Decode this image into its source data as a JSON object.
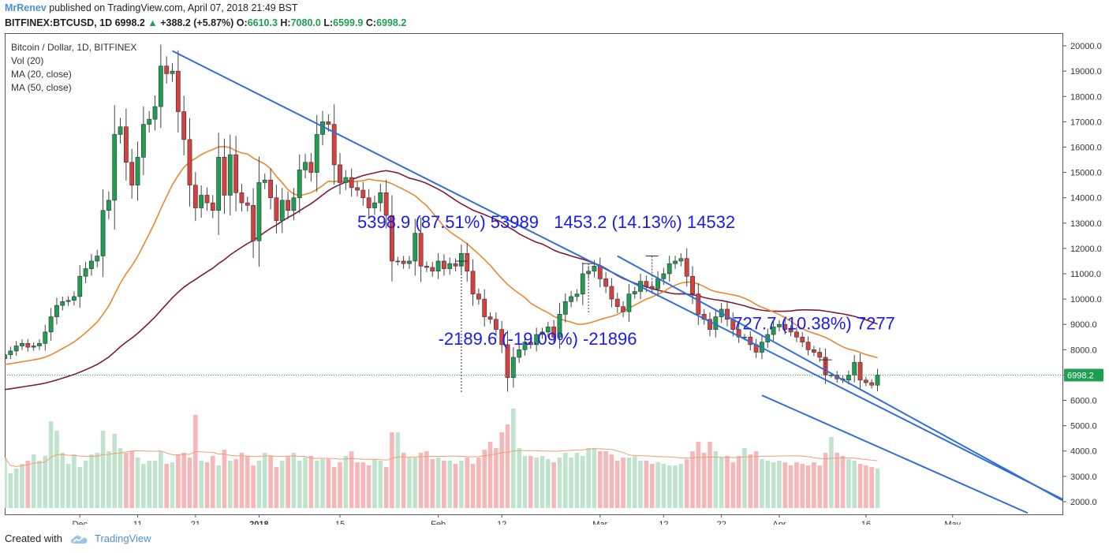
{
  "header": {
    "author": "MrRenev",
    "published": "published on TradingView.com, April 07, 2018 21:49 BST",
    "symbol": "BITFINEX:BTCUSD, 1D",
    "last": "6998.2",
    "change": "+388.2 (+5.87%)",
    "o_label": "O:",
    "o": "6610.3",
    "h_label": "H:",
    "h": "7080.0",
    "l_label": "L:",
    "l": "6599.9",
    "c_label": "C:",
    "c": "6998.2"
  },
  "legend": [
    "Bitcoin / Dollar, 1D, BITFINEX",
    "Vol (20)",
    "MA (20, close)",
    "MA (50, close)"
  ],
  "footer": {
    "created_with": "Created with",
    "brand": "TradingView"
  },
  "colors": {
    "up": "#1e9e51",
    "down": "#d84040",
    "ma20": "#e8892f",
    "ma50": "#7a1c3a",
    "trend": "#2f6fd6",
    "annot": "#1a1aee"
  },
  "chart_data": {
    "type": "candlestick",
    "yaxis": {
      "min": 1500,
      "max": 20500,
      "ticks": [
        2000,
        3000,
        4000,
        5000,
        6000,
        7000,
        8000,
        9000,
        10000,
        11000,
        12000,
        13000,
        14000,
        15000,
        16000,
        17000,
        18000,
        19000,
        20000
      ],
      "tick_labels": [
        "2000.0",
        "3000.0",
        "4000.0",
        "5000.0",
        "6000.0",
        "7000.0",
        "8000.0",
        "9000.0",
        "10000.0",
        "11000.0",
        "12000.0",
        "13000.0",
        "14000.0",
        "15000.0",
        "16000.0",
        "17000.0",
        "18000.0",
        "19000.0",
        "20000.0"
      ]
    },
    "xaxis": {
      "start": "2017-11-18",
      "end": "2018-05-20",
      "labels": [
        {
          "date": "2017-12-01",
          "text": "Dec"
        },
        {
          "date": "2017-12-11",
          "text": "11"
        },
        {
          "date": "2017-12-21",
          "text": "21"
        },
        {
          "date": "2018-01-01",
          "text": "2018"
        },
        {
          "date": "2018-01-15",
          "text": "15"
        },
        {
          "date": "2018-02-01",
          "text": "Feb"
        },
        {
          "date": "2018-02-12",
          "text": "12"
        },
        {
          "date": "2018-03-01",
          "text": "Mar"
        },
        {
          "date": "2018-03-12",
          "text": "12"
        },
        {
          "date": "2018-03-22",
          "text": "22"
        },
        {
          "date": "2018-04-01",
          "text": "Apr"
        },
        {
          "date": "2018-04-16",
          "text": "16"
        },
        {
          "date": "2018-05-01",
          "text": "May"
        }
      ]
    },
    "last_price": {
      "value": 6998.2,
      "label": "6998.2"
    },
    "candles_start": "2017-11-18",
    "closes": [
      7800,
      7950,
      8150,
      8250,
      8100,
      8150,
      8250,
      8700,
      9300,
      9750,
      9900,
      9950,
      10100,
      10900,
      11200,
      11500,
      11700,
      13500,
      13900,
      16500,
      16800,
      15400,
      14500,
      15600,
      16900,
      17100,
      17600,
      19200,
      18900,
      19000,
      17400,
      16300,
      14500,
      13600,
      14100,
      13800,
      13500,
      15600,
      14100,
      15700,
      14200,
      13800,
      13700,
      12300,
      14600,
      14700,
      14000,
      13100,
      13900,
      13500,
      14000,
      15100,
      15400,
      15000,
      16500,
      17000,
      16900,
      15300,
      14600,
      14800,
      14400,
      14300,
      14000,
      13600,
      13800,
      14200,
      13300,
      11500,
      11500,
      11400,
      11500,
      12600,
      11300,
      11250,
      11100,
      11500,
      11200,
      11400,
      11300,
      11800,
      11100,
      10200,
      10000,
      9300,
      9200,
      8800,
      8200,
      6900,
      7700,
      8000,
      8300,
      8200,
      8600,
      8700,
      8900,
      8500,
      9400,
      9900,
      10100,
      10200,
      11000,
      11100,
      11300,
      10800,
      10500,
      10000,
      9700,
      9500,
      10200,
      10300,
      10700,
      10500,
      10400,
      10800,
      11000,
      11400,
      11500,
      11600,
      10900,
      10200,
      9400,
      9200,
      8800,
      9300,
      9600,
      9200,
      8800,
      8500,
      8500,
      8200,
      7900,
      8300,
      8600,
      8900,
      9000,
      8800,
      8700,
      8500,
      8300,
      8000,
      7900,
      7700,
      7000,
      7000,
      6850,
      6800,
      7000,
      7500,
      6800,
      6700,
      6600,
      7000
    ],
    "volumes": [
      3200,
      2200,
      2500,
      2800,
      3000,
      3400,
      3000,
      3300,
      5500,
      4900,
      3500,
      2800,
      3400,
      2600,
      3000,
      3400,
      3500,
      4900,
      3600,
      4700,
      3800,
      3500,
      3600,
      3200,
      2800,
      3000,
      3000,
      3600,
      2800,
      2900,
      3400,
      3500,
      3200,
      5900,
      3000,
      2900,
      3300,
      2700,
      3700,
      3000,
      3100,
      3500,
      3300,
      2700,
      3000,
      3500,
      3300,
      2600,
      3000,
      3300,
      3500,
      3000,
      3200,
      3300,
      3000,
      3100,
      3100,
      2600,
      2900,
      3300,
      3600,
      2900,
      2900,
      2700,
      3100,
      3000,
      2600,
      4800,
      4800,
      3500,
      3200,
      3200,
      3500,
      3600,
      3100,
      3200,
      3000,
      3000,
      2800,
      3000,
      3200,
      2800,
      3200,
      3700,
      4200,
      3800,
      4800,
      5300,
      6300,
      3800,
      3300,
      3300,
      3200,
      3300,
      3100,
      2900,
      3200,
      3500,
      3200,
      3500,
      3300,
      3800,
      3800,
      3600,
      3600,
      3400,
      3000,
      3200,
      3200,
      3300,
      3000,
      3000,
      2800,
      2900,
      2800,
      2700,
      2700,
      2800,
      3100,
      3600,
      4200,
      3500,
      4200,
      3600,
      3200,
      3300,
      2900,
      3300,
      3800,
      3400,
      3600,
      3100,
      3000,
      2900,
      3000,
      2900,
      2700,
      2900,
      2800,
      2700,
      2900,
      2700,
      3500,
      4500,
      3500,
      3300,
      3100,
      3000,
      2800,
      2700,
      2600,
      2500
    ],
    "annotations": [
      {
        "text": "5398.9 (87.51%) 53989",
        "date": "2018-01-18",
        "price": 12800
      },
      {
        "text": "1453.2 (14.13%) 14532",
        "date": "2018-02-21",
        "price": 12800
      },
      {
        "text": "-2189.6 (-19.09%) -21896",
        "date": "2018-02-01",
        "price": 8200
      },
      {
        "text": "727.7 (10.38%) 7277",
        "date": "2018-03-24",
        "price": 8800
      }
    ],
    "trendlines": [
      {
        "from": {
          "date": "2017-12-17",
          "price": 19800
        },
        "to": {
          "date": "2018-05-20",
          "price": 2100
        }
      },
      {
        "from": {
          "date": "2018-03-04",
          "price": 11700
        },
        "to": {
          "date": "2018-05-20",
          "price": 2050
        }
      },
      {
        "from": {
          "date": "2018-03-29",
          "price": 6200
        },
        "to": {
          "date": "2018-05-14",
          "price": 1550
        }
      }
    ]
  }
}
